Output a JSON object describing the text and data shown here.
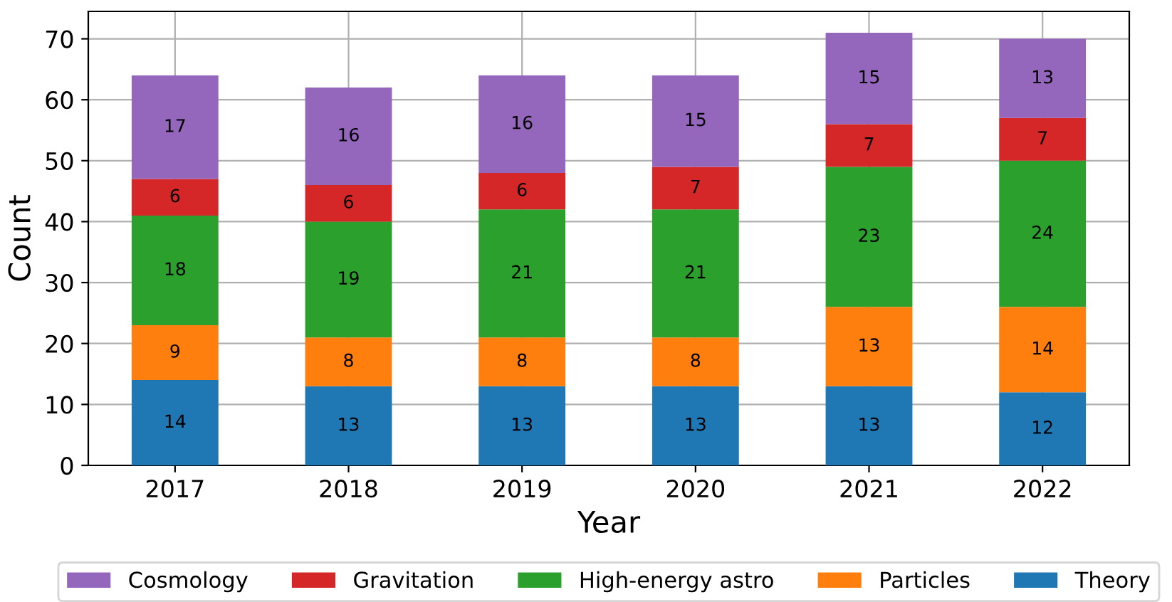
{
  "chart_data": {
    "type": "bar",
    "stacked": true,
    "xlabel": "Year",
    "ylabel": "Count",
    "categories": [
      "2017",
      "2018",
      "2019",
      "2020",
      "2021",
      "2022"
    ],
    "series": [
      {
        "name": "Theory",
        "color": "#1f77b4",
        "values": [
          14,
          13,
          13,
          13,
          13,
          12
        ]
      },
      {
        "name": "Particles",
        "color": "#ff7f0e",
        "values": [
          9,
          8,
          8,
          8,
          13,
          14
        ]
      },
      {
        "name": "High-energy astro",
        "color": "#2ca02c",
        "values": [
          18,
          19,
          21,
          21,
          23,
          24
        ]
      },
      {
        "name": "Gravitation",
        "color": "#d62728",
        "values": [
          6,
          6,
          6,
          7,
          7,
          7
        ]
      },
      {
        "name": "Cosmology",
        "color": "#9467bd",
        "values": [
          17,
          16,
          16,
          15,
          15,
          13
        ]
      }
    ],
    "ylim": [
      0,
      74.5
    ],
    "yticks": [
      0,
      10,
      20,
      30,
      40,
      50,
      60,
      70
    ],
    "grid": true,
    "legend": "bottom",
    "data_labels": true
  }
}
